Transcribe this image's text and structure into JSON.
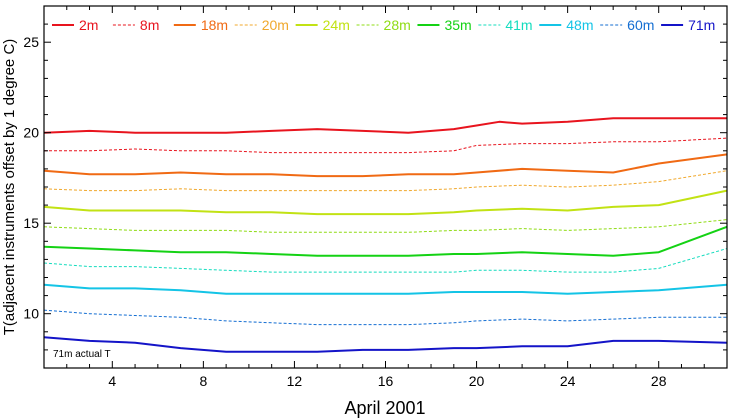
{
  "chart_data": {
    "type": "line",
    "xlabel": "April 2001",
    "ylabel": "T(adjacent instruments offset by 1 degree C)",
    "xlim": [
      1,
      31
    ],
    "ylim": [
      7,
      27
    ],
    "x_ticks": [
      4,
      8,
      12,
      16,
      20,
      24,
      28
    ],
    "y_ticks": [
      10,
      15,
      20,
      25
    ],
    "grid": false,
    "legend_placement": "top",
    "annotation": "71m actual T",
    "series": [
      {
        "name": "2m",
        "color": "#e8141e",
        "dash": "solid",
        "width": 2.0,
        "points": [
          [
            1,
            20.0
          ],
          [
            3,
            20.1
          ],
          [
            5,
            20.0
          ],
          [
            7,
            20.0
          ],
          [
            9,
            20.0
          ],
          [
            11,
            20.1
          ],
          [
            13,
            20.2
          ],
          [
            15,
            20.1
          ],
          [
            17,
            20.0
          ],
          [
            19,
            20.2
          ],
          [
            20,
            20.4
          ],
          [
            21,
            20.6
          ],
          [
            22,
            20.5
          ],
          [
            24,
            20.6
          ],
          [
            26,
            20.8
          ],
          [
            28,
            20.8
          ],
          [
            31,
            20.8
          ]
        ]
      },
      {
        "name": "8m",
        "color": "#e8141e",
        "dash": "dotted",
        "width": 1.0,
        "points": [
          [
            1,
            19.0
          ],
          [
            3,
            19.0
          ],
          [
            5,
            19.1
          ],
          [
            7,
            19.0
          ],
          [
            9,
            19.0
          ],
          [
            11,
            18.9
          ],
          [
            13,
            18.9
          ],
          [
            15,
            18.9
          ],
          [
            17,
            18.9
          ],
          [
            19,
            19.0
          ],
          [
            20,
            19.3
          ],
          [
            22,
            19.4
          ],
          [
            24,
            19.4
          ],
          [
            26,
            19.5
          ],
          [
            28,
            19.5
          ],
          [
            31,
            19.7
          ]
        ]
      },
      {
        "name": "18m",
        "color": "#f06a14",
        "dash": "solid",
        "width": 2.0,
        "points": [
          [
            1,
            17.9
          ],
          [
            3,
            17.7
          ],
          [
            5,
            17.7
          ],
          [
            7,
            17.8
          ],
          [
            9,
            17.7
          ],
          [
            11,
            17.7
          ],
          [
            13,
            17.6
          ],
          [
            15,
            17.6
          ],
          [
            17,
            17.7
          ],
          [
            19,
            17.7
          ],
          [
            20,
            17.8
          ],
          [
            22,
            18.0
          ],
          [
            24,
            17.9
          ],
          [
            26,
            17.8
          ],
          [
            28,
            18.3
          ],
          [
            31,
            18.8
          ]
        ]
      },
      {
        "name": "20m",
        "color": "#f0a82c",
        "dash": "dotted",
        "width": 1.0,
        "points": [
          [
            1,
            16.9
          ],
          [
            3,
            16.8
          ],
          [
            5,
            16.8
          ],
          [
            7,
            16.9
          ],
          [
            9,
            16.8
          ],
          [
            11,
            16.8
          ],
          [
            13,
            16.8
          ],
          [
            15,
            16.8
          ],
          [
            17,
            16.8
          ],
          [
            19,
            16.9
          ],
          [
            20,
            17.0
          ],
          [
            22,
            17.1
          ],
          [
            24,
            17.0
          ],
          [
            26,
            17.1
          ],
          [
            28,
            17.3
          ],
          [
            31,
            17.9
          ]
        ]
      },
      {
        "name": "24m",
        "color": "#c2e214",
        "dash": "solid",
        "width": 2.0,
        "points": [
          [
            1,
            15.9
          ],
          [
            3,
            15.7
          ],
          [
            5,
            15.7
          ],
          [
            7,
            15.7
          ],
          [
            9,
            15.6
          ],
          [
            11,
            15.6
          ],
          [
            13,
            15.5
          ],
          [
            15,
            15.5
          ],
          [
            17,
            15.5
          ],
          [
            19,
            15.6
          ],
          [
            20,
            15.7
          ],
          [
            22,
            15.8
          ],
          [
            24,
            15.7
          ],
          [
            26,
            15.9
          ],
          [
            28,
            16.0
          ],
          [
            31,
            16.8
          ]
        ]
      },
      {
        "name": "28m",
        "color": "#8fdc14",
        "dash": "dotted",
        "width": 1.0,
        "points": [
          [
            1,
            14.8
          ],
          [
            3,
            14.7
          ],
          [
            5,
            14.6
          ],
          [
            7,
            14.6
          ],
          [
            9,
            14.6
          ],
          [
            11,
            14.5
          ],
          [
            13,
            14.5
          ],
          [
            15,
            14.5
          ],
          [
            17,
            14.5
          ],
          [
            19,
            14.6
          ],
          [
            20,
            14.6
          ],
          [
            22,
            14.7
          ],
          [
            24,
            14.6
          ],
          [
            26,
            14.7
          ],
          [
            28,
            14.8
          ],
          [
            31,
            15.2
          ]
        ]
      },
      {
        "name": "35m",
        "color": "#14d214",
        "dash": "solid",
        "width": 2.0,
        "points": [
          [
            1,
            13.7
          ],
          [
            3,
            13.6
          ],
          [
            5,
            13.5
          ],
          [
            7,
            13.4
          ],
          [
            9,
            13.4
          ],
          [
            11,
            13.3
          ],
          [
            13,
            13.2
          ],
          [
            15,
            13.2
          ],
          [
            17,
            13.2
          ],
          [
            19,
            13.3
          ],
          [
            20,
            13.3
          ],
          [
            22,
            13.4
          ],
          [
            24,
            13.3
          ],
          [
            26,
            13.2
          ],
          [
            28,
            13.4
          ],
          [
            31,
            14.8
          ]
        ]
      },
      {
        "name": "41m",
        "color": "#14dcbe",
        "dash": "dotted",
        "width": 1.0,
        "points": [
          [
            1,
            12.8
          ],
          [
            3,
            12.6
          ],
          [
            5,
            12.6
          ],
          [
            7,
            12.5
          ],
          [
            9,
            12.4
          ],
          [
            11,
            12.3
          ],
          [
            13,
            12.3
          ],
          [
            15,
            12.3
          ],
          [
            17,
            12.3
          ],
          [
            19,
            12.3
          ],
          [
            20,
            12.4
          ],
          [
            22,
            12.4
          ],
          [
            24,
            12.3
          ],
          [
            26,
            12.3
          ],
          [
            28,
            12.5
          ],
          [
            31,
            13.6
          ]
        ]
      },
      {
        "name": "48m",
        "color": "#14c4e6",
        "dash": "solid",
        "width": 2.0,
        "points": [
          [
            1,
            11.6
          ],
          [
            3,
            11.4
          ],
          [
            5,
            11.4
          ],
          [
            7,
            11.3
          ],
          [
            9,
            11.1
          ],
          [
            11,
            11.1
          ],
          [
            13,
            11.1
          ],
          [
            15,
            11.1
          ],
          [
            17,
            11.1
          ],
          [
            19,
            11.2
          ],
          [
            20,
            11.2
          ],
          [
            22,
            11.2
          ],
          [
            24,
            11.1
          ],
          [
            26,
            11.2
          ],
          [
            28,
            11.3
          ],
          [
            31,
            11.6
          ]
        ]
      },
      {
        "name": "60m",
        "color": "#146ed2",
        "dash": "dotted",
        "width": 1.0,
        "points": [
          [
            1,
            10.2
          ],
          [
            3,
            10.0
          ],
          [
            5,
            9.9
          ],
          [
            7,
            9.8
          ],
          [
            9,
            9.6
          ],
          [
            11,
            9.5
          ],
          [
            13,
            9.4
          ],
          [
            15,
            9.4
          ],
          [
            17,
            9.4
          ],
          [
            19,
            9.5
          ],
          [
            20,
            9.6
          ],
          [
            22,
            9.7
          ],
          [
            24,
            9.6
          ],
          [
            26,
            9.7
          ],
          [
            28,
            9.8
          ],
          [
            31,
            9.8
          ]
        ]
      },
      {
        "name": "71m",
        "color": "#1414c8",
        "dash": "solid",
        "width": 2.0,
        "points": [
          [
            1,
            8.7
          ],
          [
            3,
            8.5
          ],
          [
            5,
            8.4
          ],
          [
            7,
            8.1
          ],
          [
            9,
            7.9
          ],
          [
            11,
            7.9
          ],
          [
            13,
            7.9
          ],
          [
            15,
            8.0
          ],
          [
            17,
            8.0
          ],
          [
            19,
            8.1
          ],
          [
            20,
            8.1
          ],
          [
            22,
            8.2
          ],
          [
            24,
            8.2
          ],
          [
            26,
            8.5
          ],
          [
            28,
            8.5
          ],
          [
            31,
            8.4
          ]
        ]
      }
    ]
  }
}
